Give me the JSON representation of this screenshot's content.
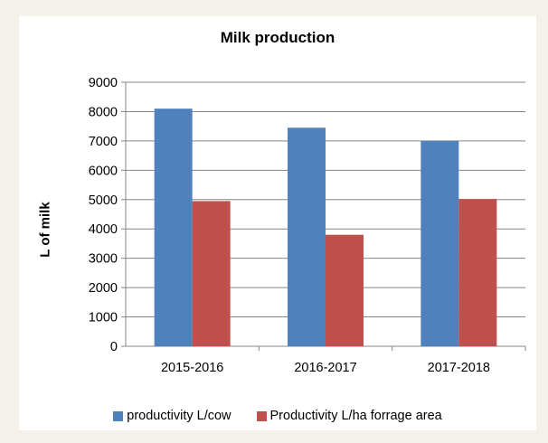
{
  "chart_data": {
    "type": "bar",
    "title": "Milk production",
    "xlabel": "",
    "ylabel": "L of milk",
    "categories": [
      "2015-2016",
      "2016-2017",
      "2017-2018"
    ],
    "series": [
      {
        "name": "productivity L/cow",
        "color": "#4f81bd",
        "values": [
          8100,
          7450,
          7000
        ]
      },
      {
        "name": "Productivity L/ha forrage area",
        "color": "#c0504d",
        "values": [
          4950,
          3800,
          5020
        ]
      }
    ],
    "ylim": [
      0,
      9000
    ],
    "yticks": [
      0,
      1000,
      2000,
      3000,
      4000,
      5000,
      6000,
      7000,
      8000,
      9000
    ],
    "grid": true,
    "legend_position": "bottom"
  }
}
